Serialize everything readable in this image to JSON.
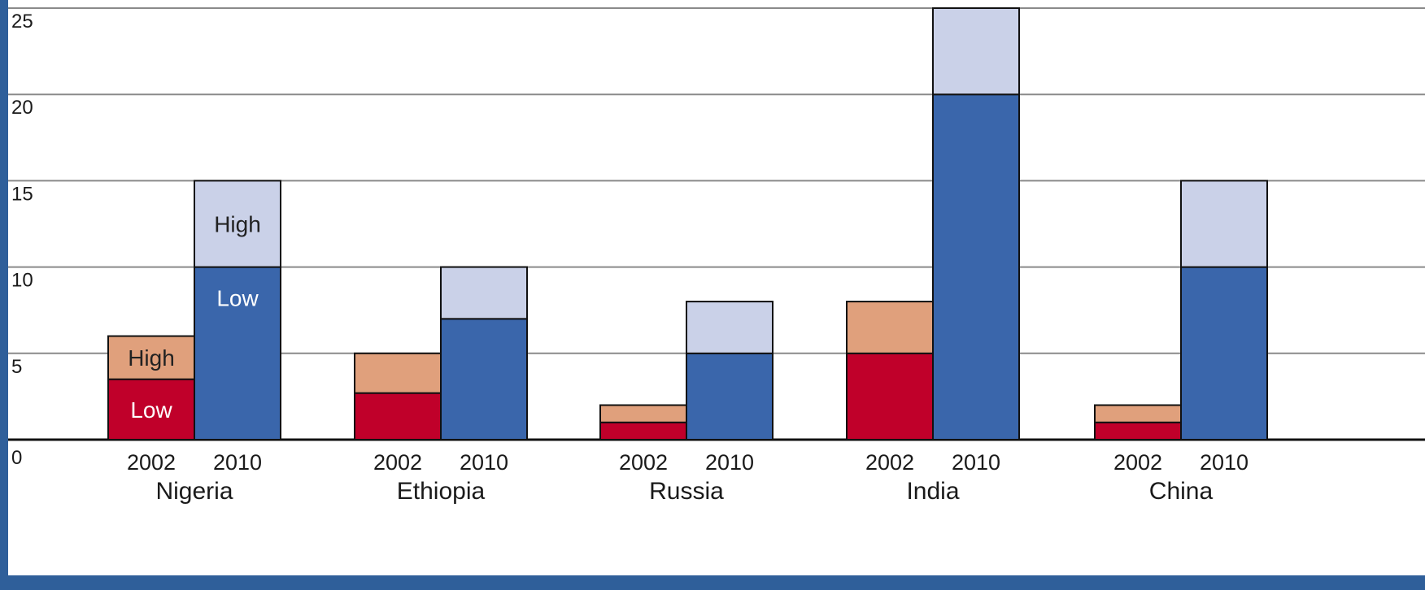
{
  "colors": {
    "frame": "#2f5f9a",
    "y2002_low": "#c0002a",
    "y2002_high": "#e0a07c",
    "y2010_low": "#3a66ab",
    "y2010_high": "#cad1e8",
    "gridline": "#8a8a8a",
    "axis": "#111111"
  },
  "chart_data": {
    "type": "bar",
    "stacked": true,
    "ylim": [
      0,
      25
    ],
    "yticks": [
      0,
      5,
      10,
      15,
      20,
      25
    ],
    "grid": true,
    "groups": [
      {
        "country": "Nigeria",
        "bars": [
          {
            "year": "2002",
            "low": 3.5,
            "high": 6.0,
            "labels": {
              "low": "Low",
              "high": "High"
            }
          },
          {
            "year": "2010",
            "low": 10.0,
            "high": 15.0,
            "labels": {
              "low": "Low",
              "high": "High"
            }
          }
        ]
      },
      {
        "country": "Ethiopia",
        "bars": [
          {
            "year": "2002",
            "low": 2.7,
            "high": 5.0
          },
          {
            "year": "2010",
            "low": 7.0,
            "high": 10.0
          }
        ]
      },
      {
        "country": "Russia",
        "bars": [
          {
            "year": "2002",
            "low": 1.0,
            "high": 2.0
          },
          {
            "year": "2010",
            "low": 5.0,
            "high": 8.0
          }
        ]
      },
      {
        "country": "India",
        "bars": [
          {
            "year": "2002",
            "low": 5.0,
            "high": 8.0
          },
          {
            "year": "2010",
            "low": 20.0,
            "high": 25.0
          }
        ]
      },
      {
        "country": "China",
        "bars": [
          {
            "year": "2002",
            "low": 1.0,
            "high": 2.0
          },
          {
            "year": "2010",
            "low": 10.0,
            "high": 15.0
          }
        ]
      }
    ]
  }
}
